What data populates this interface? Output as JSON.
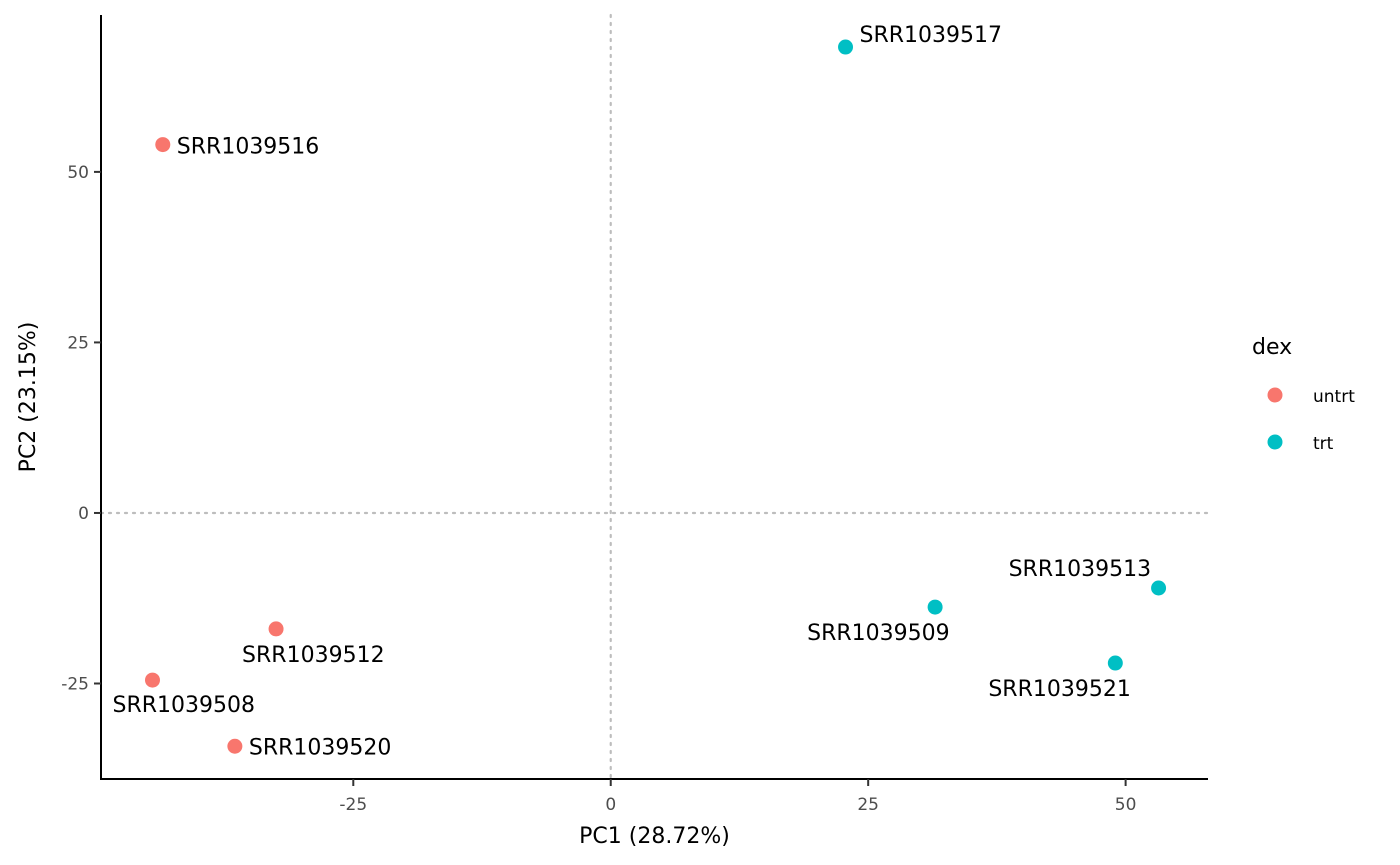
{
  "chart_data": {
    "type": "scatter",
    "xlabel": "PC1 (28.72%)",
    "ylabel": "PC2 (23.15%)",
    "xlim": [
      -49.5,
      58
    ],
    "ylim": [
      -39,
      73
    ],
    "x_ticks": [
      -25,
      0,
      25,
      50
    ],
    "y_ticks": [
      -25,
      0,
      25,
      50
    ],
    "x_tick_labels": [
      "-25",
      "0",
      "25",
      "50"
    ],
    "y_tick_labels": [
      "-25",
      "0",
      "25",
      "50"
    ],
    "reference_lines": {
      "x": 0,
      "y": 0,
      "style": "dotted"
    },
    "grid": false,
    "legend": {
      "title": "dex",
      "position": "right",
      "entries": [
        {
          "name": "untrt",
          "color": "#F8766D"
        },
        {
          "name": "trt",
          "color": "#00BFC4"
        }
      ]
    },
    "points": [
      {
        "label": "SRR1039516",
        "x": -43.5,
        "y": 54.0,
        "group": "untrt"
      },
      {
        "label": "SRR1039512",
        "x": -32.5,
        "y": -17.0,
        "group": "untrt"
      },
      {
        "label": "SRR1039508",
        "x": -44.5,
        "y": -24.5,
        "group": "untrt"
      },
      {
        "label": "SRR1039520",
        "x": -36.5,
        "y": -34.2,
        "group": "untrt"
      },
      {
        "label": "SRR1039517",
        "x": 22.8,
        "y": 68.3,
        "group": "trt"
      },
      {
        "label": "SRR1039509",
        "x": 31.5,
        "y": -13.8,
        "group": "trt"
      },
      {
        "label": "SRR1039513",
        "x": 53.2,
        "y": -11.0,
        "group": "trt"
      },
      {
        "label": "SRR1039521",
        "x": 49.0,
        "y": -22.0,
        "group": "trt"
      }
    ]
  }
}
